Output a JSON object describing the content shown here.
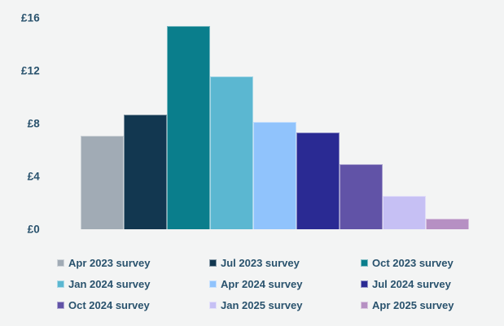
{
  "chart_data": {
    "type": "bar",
    "title": "",
    "categories": [
      "Apr 2023 survey",
      "Jul 2023 survey",
      "Oct 2023 survey",
      "Jan 2024 survey",
      "Apr 2024 survey",
      "Jul 2024 survey",
      "Oct 2024 survey",
      "Jan 2025 survey",
      "Apr 2025 survey"
    ],
    "values": [
      7.1,
      8.7,
      15.4,
      11.6,
      8.1,
      7.3,
      4.9,
      2.5,
      0.8
    ],
    "bar_colors": [
      "#a1abb5",
      "#123750",
      "#0a7e8c",
      "#5bb7d1",
      "#90c3fc",
      "#2a2a93",
      "#6153a7",
      "#c6c0f4",
      "#b690c3"
    ],
    "currency_prefix": "£",
    "xlabel": "",
    "ylabel": "",
    "ylim": [
      0,
      16
    ],
    "yticks": [
      0,
      4,
      8,
      12,
      16
    ],
    "ytick_labels": [
      "£0",
      "£4",
      "£8",
      "£12",
      "£16"
    ],
    "grid": false,
    "legend_position": "bottom",
    "legend_columns": 3,
    "background_color": "#f3f4f4",
    "text_color": "#29526d"
  }
}
